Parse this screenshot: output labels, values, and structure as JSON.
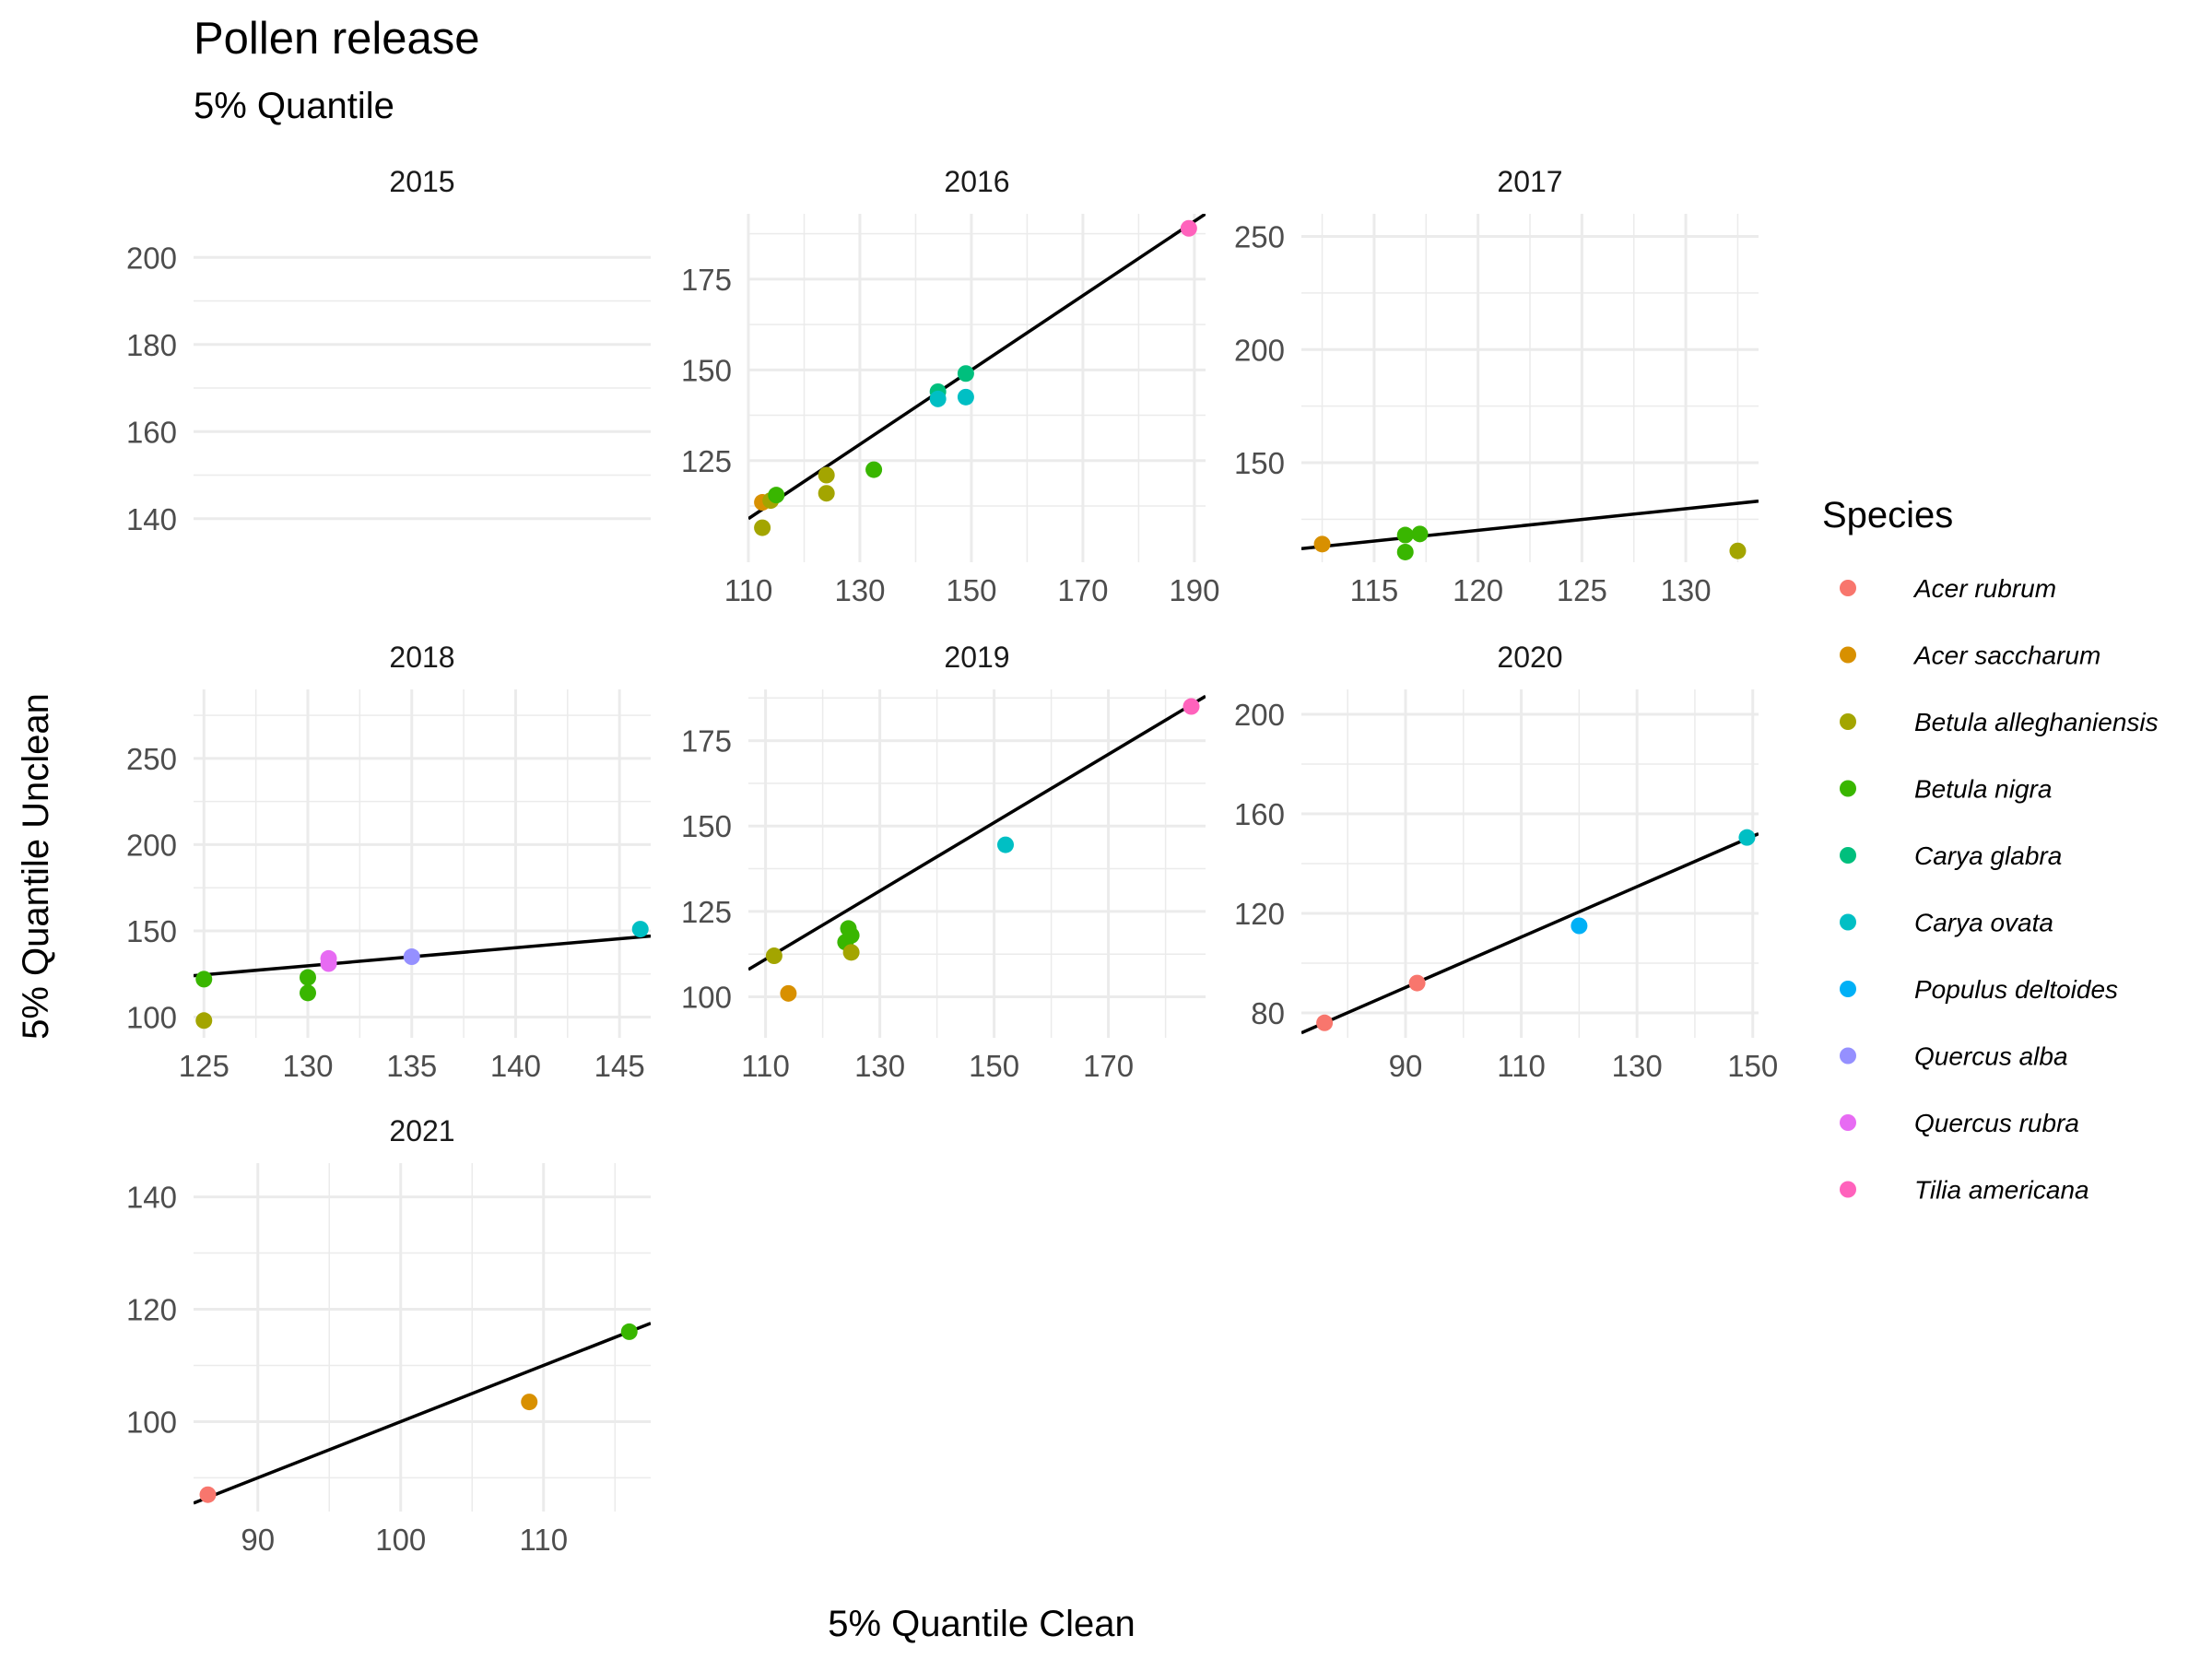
{
  "chart_data": {
    "type": "scatter",
    "title": "Pollen release",
    "subtitle": "5% Quantile",
    "xlabel": "5% Quantile Clean",
    "ylabel": "5% Quantile Unclean",
    "legend": {
      "title": "Species",
      "placement": "right",
      "entries": [
        {
          "name": "Acer rubrum",
          "color": "#F8766D"
        },
        {
          "name": "Acer saccharum",
          "color": "#D89000"
        },
        {
          "name": "Betula alleghaniensis",
          "color": "#A3A500"
        },
        {
          "name": "Betula nigra",
          "color": "#39B600"
        },
        {
          "name": "Carya glabra",
          "color": "#00BF7D"
        },
        {
          "name": "Carya ovata",
          "color": "#00BFC4"
        },
        {
          "name": "Populus deltoides",
          "color": "#00B0F6"
        },
        {
          "name": "Quercus alba",
          "color": "#9590FF"
        },
        {
          "name": "Quercus rubra",
          "color": "#E76BF3"
        },
        {
          "name": "Tilia americana",
          "color": "#FF62BC"
        }
      ]
    },
    "grid": true,
    "panels": [
      {
        "label": "2015",
        "xlim": [
          110,
          190
        ],
        "ylim": [
          130,
          210
        ],
        "xticks": [],
        "yticks": [
          140,
          160,
          180,
          200
        ],
        "points": [],
        "line": null
      },
      {
        "label": "2016",
        "xlim": [
          110,
          192
        ],
        "ylim": [
          97,
          193
        ],
        "xticks": [
          110,
          130,
          150,
          170,
          190
        ],
        "yticks": [
          125,
          150,
          175
        ],
        "points": [
          {
            "species": "Acer saccharum",
            "x": 112.5,
            "y": 113.5
          },
          {
            "species": "Betula alleghaniensis",
            "x": 112.5,
            "y": 106.5
          },
          {
            "species": "Betula alleghaniensis",
            "x": 114,
            "y": 114
          },
          {
            "species": "Betula alleghaniensis",
            "x": 124,
            "y": 121
          },
          {
            "species": "Betula alleghaniensis",
            "x": 124,
            "y": 116
          },
          {
            "species": "Betula nigra",
            "x": 115,
            "y": 115.5
          },
          {
            "species": "Betula nigra",
            "x": 132.5,
            "y": 122.5
          },
          {
            "species": "Carya glabra",
            "x": 144,
            "y": 144
          },
          {
            "species": "Carya glabra",
            "x": 149,
            "y": 149
          },
          {
            "species": "Carya ovata",
            "x": 144,
            "y": 142
          },
          {
            "species": "Carya ovata",
            "x": 149,
            "y": 142.5
          },
          {
            "species": "Tilia americana",
            "x": 189,
            "y": 189
          }
        ],
        "line": {
          "x": [
            110,
            192
          ],
          "y": [
            109,
            193
          ]
        }
      },
      {
        "label": "2017",
        "xlim": [
          111.5,
          133.5
        ],
        "ylim": [
          106,
          260
        ],
        "xticks": [
          115,
          120,
          125,
          130
        ],
        "yticks": [
          150,
          200,
          250
        ],
        "points": [
          {
            "species": "Acer saccharum",
            "x": 112.5,
            "y": 114
          },
          {
            "species": "Betula nigra",
            "x": 116.5,
            "y": 118
          },
          {
            "species": "Betula nigra",
            "x": 116.5,
            "y": 110.5
          },
          {
            "species": "Betula nigra",
            "x": 117.2,
            "y": 118.5
          },
          {
            "species": "Betula alleghaniensis",
            "x": 132.5,
            "y": 111
          }
        ],
        "line": {
          "x": [
            111.5,
            133.5
          ],
          "y": [
            112,
            133
          ]
        }
      },
      {
        "label": "2018",
        "xlim": [
          124.5,
          146.5
        ],
        "ylim": [
          88,
          290
        ],
        "xticks": [
          125,
          130,
          135,
          140,
          145
        ],
        "yticks": [
          100,
          150,
          200,
          250
        ],
        "points": [
          {
            "species": "Betula nigra",
            "x": 125,
            "y": 122
          },
          {
            "species": "Betula alleghaniensis",
            "x": 125,
            "y": 98
          },
          {
            "species": "Betula nigra",
            "x": 130,
            "y": 123
          },
          {
            "species": "Betula nigra",
            "x": 130,
            "y": 114
          },
          {
            "species": "Quercus rubra",
            "x": 131,
            "y": 134
          },
          {
            "species": "Quercus rubra",
            "x": 131,
            "y": 131
          },
          {
            "species": "Quercus alba",
            "x": 135,
            "y": 135
          },
          {
            "species": "Carya ovata",
            "x": 146,
            "y": 151
          }
        ],
        "line": {
          "x": [
            124.5,
            146.5
          ],
          "y": [
            124,
            147
          ]
        }
      },
      {
        "label": "2019",
        "xlim": [
          107,
          187
        ],
        "ylim": [
          88,
          190
        ],
        "xticks": [
          110,
          130,
          150,
          170
        ],
        "yticks": [
          100,
          125,
          150,
          175
        ],
        "points": [
          {
            "species": "Betula alleghaniensis",
            "x": 111.5,
            "y": 112
          },
          {
            "species": "Acer saccharum",
            "x": 114,
            "y": 101
          },
          {
            "species": "Betula nigra",
            "x": 124,
            "y": 116
          },
          {
            "species": "Betula nigra",
            "x": 124.5,
            "y": 120
          },
          {
            "species": "Betula nigra",
            "x": 125,
            "y": 118
          },
          {
            "species": "Betula alleghaniensis",
            "x": 125,
            "y": 113
          },
          {
            "species": "Carya ovata",
            "x": 152,
            "y": 144.5
          },
          {
            "species": "Tilia americana",
            "x": 184.5,
            "y": 185
          }
        ],
        "line": {
          "x": [
            107,
            187
          ],
          "y": [
            108,
            188
          ]
        }
      },
      {
        "label": "2020",
        "xlim": [
          72,
          151
        ],
        "ylim": [
          70,
          210
        ],
        "xticks": [
          90,
          110,
          130,
          150
        ],
        "yticks": [
          80,
          120,
          160,
          200
        ],
        "points": [
          {
            "species": "Acer rubrum",
            "x": 76,
            "y": 76
          },
          {
            "species": "Acer rubrum",
            "x": 92,
            "y": 92
          },
          {
            "species": "Populus deltoides",
            "x": 120,
            "y": 115
          },
          {
            "species": "Carya ovata",
            "x": 149,
            "y": 150.5
          }
        ],
        "line": {
          "x": [
            72,
            151
          ],
          "y": [
            72,
            152
          ]
        }
      },
      {
        "label": "2021",
        "xlim": [
          85.5,
          117.5
        ],
        "ylim": [
          84,
          146
        ],
        "xticks": [
          90,
          100,
          110
        ],
        "yticks": [
          100,
          120,
          140
        ],
        "points": [
          {
            "species": "Acer rubrum",
            "x": 86.5,
            "y": 87
          },
          {
            "species": "Acer saccharum",
            "x": 109,
            "y": 103.5
          },
          {
            "species": "Betula nigra",
            "x": 116,
            "y": 116
          }
        ],
        "line": {
          "x": [
            85.5,
            117.5
          ],
          "y": [
            85.5,
            117.5
          ]
        }
      }
    ]
  }
}
